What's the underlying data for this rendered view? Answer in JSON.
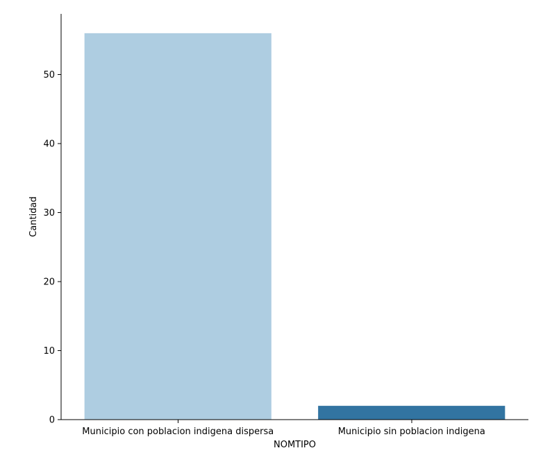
{
  "chart_data": {
    "type": "bar",
    "categories": [
      "Municipio con poblacion indigena dispersa",
      "Municipio sin poblacion indigena"
    ],
    "values": [
      56,
      2
    ],
    "colors": [
      "#aecde1",
      "#3274a1"
    ],
    "xlabel": "NOMTIPO",
    "ylabel": "Cantidad",
    "ylim": [
      0,
      58.8
    ],
    "yticks": [
      0,
      10,
      20,
      30,
      40,
      50
    ],
    "grid": false,
    "legend": "none",
    "spines": "left-bottom"
  }
}
